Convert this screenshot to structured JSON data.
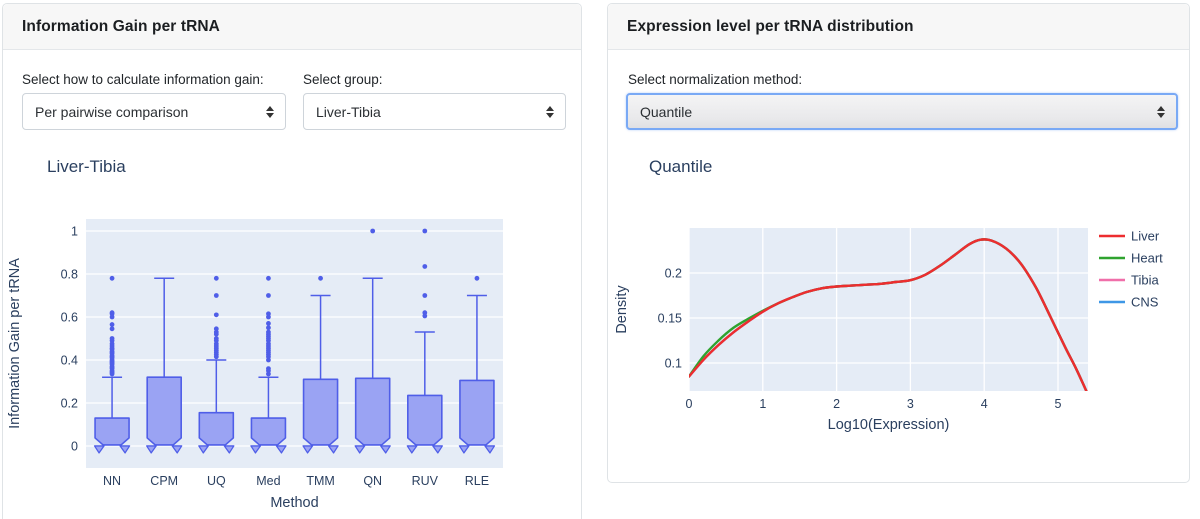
{
  "left_panel": {
    "title": "Information Gain per tRNA",
    "control_calc": {
      "label": "Select how to calculate information gain:",
      "value": "Per pairwise comparison"
    },
    "control_group": {
      "label": "Select group:",
      "value": "Liver-Tibia"
    }
  },
  "right_panel": {
    "title": "Expression level per tRNA distribution",
    "control_norm": {
      "label": "Select normalization method:",
      "value": "Quantile"
    }
  },
  "chart_data": [
    {
      "id": "info-gain-boxplot",
      "type": "box",
      "title": "Liver-Tibia",
      "xlabel": "Method",
      "ylabel": "Information Gain per tRNA",
      "categories": [
        "NN",
        "CPM",
        "UQ",
        "Med",
        "TMM",
        "QN",
        "RUV",
        "RLE"
      ],
      "yticks": [
        0,
        0.2,
        0.4,
        0.6,
        0.8,
        1
      ],
      "ylim": [
        -0.1,
        1.05
      ],
      "notched": true,
      "grid": "horizontal",
      "boxes": [
        {
          "method": "NN",
          "q1": 0,
          "median": 0.005,
          "q3": 0.13,
          "whisker_low": 0,
          "whisker_high": 0.32,
          "notch_low": -0.045,
          "outliers": [
            0.78,
            0.62,
            0.615,
            0.6,
            0.565,
            0.545,
            0.5,
            0.49,
            0.475,
            0.465,
            0.455,
            0.45,
            0.44,
            0.435,
            0.43,
            0.42,
            0.415,
            0.41,
            0.4,
            0.395,
            0.39,
            0.385,
            0.38,
            0.37,
            0.365,
            0.36,
            0.35,
            0.345,
            0.34,
            0.335
          ]
        },
        {
          "method": "CPM",
          "q1": 0,
          "median": 0.005,
          "q3": 0.32,
          "whisker_low": 0,
          "whisker_high": 0.78,
          "notch_low": -0.045,
          "outliers": []
        },
        {
          "method": "UQ",
          "q1": 0,
          "median": 0.005,
          "q3": 0.155,
          "whisker_low": 0,
          "whisker_high": 0.4,
          "notch_low": -0.045,
          "outliers": [
            0.78,
            0.7,
            0.61,
            0.545,
            0.53,
            0.52,
            0.5,
            0.49,
            0.475,
            0.465,
            0.455,
            0.445,
            0.435,
            0.425,
            0.415
          ]
        },
        {
          "method": "Med",
          "q1": 0,
          "median": 0.005,
          "q3": 0.13,
          "whisker_low": 0,
          "whisker_high": 0.32,
          "notch_low": -0.045,
          "outliers": [
            0.78,
            0.7,
            0.615,
            0.6,
            0.57,
            0.55,
            0.53,
            0.52,
            0.51,
            0.5,
            0.49,
            0.475,
            0.465,
            0.455,
            0.445,
            0.435,
            0.425,
            0.415,
            0.4,
            0.36,
            0.35,
            0.335
          ]
        },
        {
          "method": "TMM",
          "q1": 0,
          "median": 0.005,
          "q3": 0.31,
          "whisker_low": 0,
          "whisker_high": 0.7,
          "notch_low": -0.045,
          "outliers": [
            0.78
          ]
        },
        {
          "method": "QN",
          "q1": 0,
          "median": 0.005,
          "q3": 0.315,
          "whisker_low": 0,
          "whisker_high": 0.78,
          "notch_low": -0.045,
          "outliers": [
            1.0
          ]
        },
        {
          "method": "RUV",
          "q1": 0,
          "median": 0.005,
          "q3": 0.235,
          "whisker_low": 0,
          "whisker_high": 0.53,
          "notch_low": -0.045,
          "outliers": [
            1.0,
            0.835,
            0.7,
            0.62,
            0.605
          ]
        },
        {
          "method": "RLE",
          "q1": 0,
          "median": 0.005,
          "q3": 0.305,
          "whisker_low": 0,
          "whisker_high": 0.7,
          "notch_low": -0.045,
          "outliers": [
            0.78
          ]
        }
      ],
      "colors": {
        "fill": "#9aa3f3",
        "line": "#4f5ee8",
        "plot_bg": "#e5ecf6",
        "grid": "#ffffff",
        "text": "#2a3f5f"
      }
    },
    {
      "id": "expression-density",
      "type": "line",
      "title": "Quantile",
      "xlabel": "Log10(Expression)",
      "ylabel": "Density",
      "xticks": [
        0,
        1,
        2,
        3,
        4,
        5
      ],
      "yticks": [
        0.1,
        0.15,
        0.2
      ],
      "xlim": [
        0,
        5.4
      ],
      "ylim": [
        0.069,
        0.25
      ],
      "grid": "both",
      "legend_position": "right",
      "x": [
        0,
        0.2,
        0.4,
        0.6,
        0.8,
        1,
        1.2,
        1.4,
        1.6,
        1.8,
        2,
        2.2,
        2.4,
        2.6,
        2.8,
        3,
        3.2,
        3.4,
        3.6,
        3.8,
        3.95,
        4.1,
        4.3,
        4.5,
        4.7,
        4.9,
        5.1,
        5.25,
        5.4
      ],
      "series": [
        {
          "name": "Liver",
          "color": "#ed2d2f",
          "y": [
            0.085,
            0.104,
            0.12,
            0.134,
            0.146,
            0.157,
            0.166,
            0.173,
            0.179,
            0.183,
            0.185,
            0.186,
            0.187,
            0.188,
            0.19,
            0.192,
            0.198,
            0.208,
            0.22,
            0.232,
            0.237,
            0.236,
            0.227,
            0.21,
            0.184,
            0.151,
            0.117,
            0.093,
            0.066
          ]
        },
        {
          "name": "Heart",
          "color": "#2fa32f",
          "y": [
            0.085,
            0.108,
            0.125,
            0.139,
            0.149,
            0.158,
            0.166,
            0.173,
            0.179,
            0.183,
            0.185,
            0.186,
            0.187,
            0.188,
            0.19,
            0.192,
            0.198,
            0.208,
            0.22,
            0.232,
            0.237,
            0.236,
            0.227,
            0.21,
            0.184,
            0.151,
            0.117,
            0.093,
            0.066
          ]
        },
        {
          "name": "Tibia",
          "color": "#f06fa9",
          "y": [
            0.085,
            0.104,
            0.12,
            0.134,
            0.146,
            0.157,
            0.166,
            0.173,
            0.179,
            0.183,
            0.185,
            0.186,
            0.187,
            0.188,
            0.19,
            0.192,
            0.198,
            0.208,
            0.22,
            0.232,
            0.237,
            0.236,
            0.227,
            0.21,
            0.184,
            0.151,
            0.117,
            0.093,
            0.066
          ]
        },
        {
          "name": "CNS",
          "color": "#3e97e6",
          "y": [
            0.085,
            0.104,
            0.12,
            0.134,
            0.146,
            0.157,
            0.166,
            0.173,
            0.179,
            0.183,
            0.185,
            0.186,
            0.187,
            0.188,
            0.19,
            0.192,
            0.198,
            0.208,
            0.22,
            0.232,
            0.237,
            0.236,
            0.227,
            0.21,
            0.184,
            0.151,
            0.117,
            0.093,
            0.066
          ]
        }
      ],
      "colors": {
        "plot_bg": "#e5ecf6",
        "grid": "#ffffff",
        "text": "#2a3f5f"
      }
    }
  ]
}
